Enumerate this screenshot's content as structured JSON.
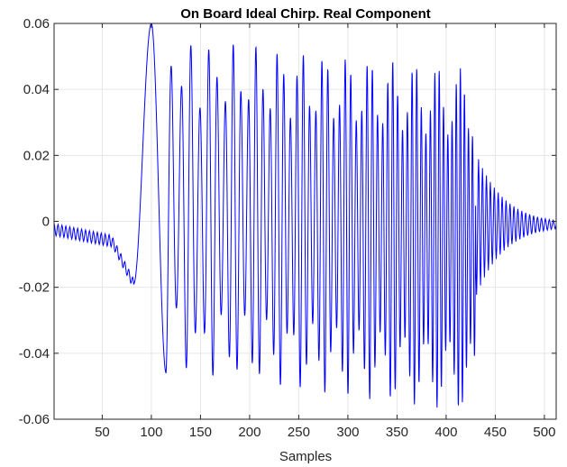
{
  "chart_data": {
    "type": "line",
    "title": "On Board Ideal Chirp. Real Component",
    "xlabel": "Samples",
    "ylabel": "",
    "xlim": [
      1,
      512
    ],
    "ylim": [
      -0.06,
      0.06
    ],
    "xticks": [
      50,
      100,
      150,
      200,
      250,
      300,
      350,
      400,
      450,
      500
    ],
    "yticks": [
      -0.06,
      -0.04,
      -0.02,
      0,
      0.02,
      0.04,
      0.06
    ],
    "ytick_labels": [
      "-0.06",
      "-0.04",
      "-0.02",
      "0",
      "0.02",
      "0.04",
      "0.06"
    ],
    "grid": true,
    "line_color": "#0000ff",
    "grid_color": "#e6e6e6",
    "axis_color": "#262626",
    "series": [
      {
        "style": "oscillating signal",
        "segments": [
          {
            "x_start": 1,
            "x_end": 60,
            "baseline_start": -0.0025,
            "baseline_end": -0.006,
            "amplitude": 0.0018,
            "period": 4
          },
          {
            "x_start": 60,
            "x_end": 82,
            "baseline_start": -0.006,
            "baseline_end": -0.019,
            "amplitude": 0.0015,
            "period": 4
          },
          {
            "x_start": 82,
            "x_end": 100,
            "shape": "rise",
            "y_start": -0.019,
            "y_end": 0.06
          },
          {
            "x_start": 100,
            "x_end": 115,
            "shape": "fall",
            "y_start": 0.06,
            "y_end": -0.046
          },
          {
            "x_start": 115,
            "x_end": 430,
            "shape": "dense chirp",
            "upper_envelope_start": 0.056,
            "upper_envelope_end": 0.046,
            "lower_envelope_start": -0.046,
            "lower_envelope_end": -0.058,
            "period_start": 12,
            "period_end": 4
          },
          {
            "x_start": 430,
            "x_end": 512,
            "shape": "decay",
            "amplitude_start": 0.022,
            "amplitude_end": 0.0012,
            "baseline": -0.001,
            "period": 4
          }
        ],
        "peaks": [
          {
            "x": 100,
            "y": 0.06
          },
          {
            "x": 120,
            "y": 0.056
          },
          {
            "x": 420,
            "y": 0.055
          },
          {
            "x": 412,
            "y": -0.058
          }
        ]
      }
    ]
  }
}
